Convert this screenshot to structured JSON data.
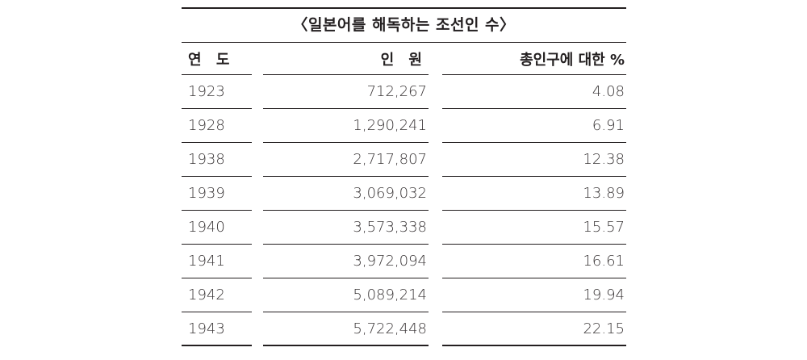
{
  "caption": "〈일본어를 해독하는 조선인 수〉",
  "headers": {
    "year": "연 도",
    "people": "인 원",
    "percent": "총인구에 대한 %"
  },
  "rows": [
    {
      "year": "1923",
      "people": "712,267",
      "percent": "4.08"
    },
    {
      "year": "1928",
      "people": "1,290,241",
      "percent": "6.91"
    },
    {
      "year": "1938",
      "people": "2,717,807",
      "percent": "12.38"
    },
    {
      "year": "1939",
      "people": "3,069,032",
      "percent": "13.89"
    },
    {
      "year": "1940",
      "people": "3,573,338",
      "percent": "15.57"
    },
    {
      "year": "1941",
      "people": "3,972,094",
      "percent": "16.61"
    },
    {
      "year": "1942",
      "people": "5,089,214",
      "percent": "19.94"
    },
    {
      "year": "1943",
      "people": "5,722,448",
      "percent": "22.15"
    }
  ]
}
